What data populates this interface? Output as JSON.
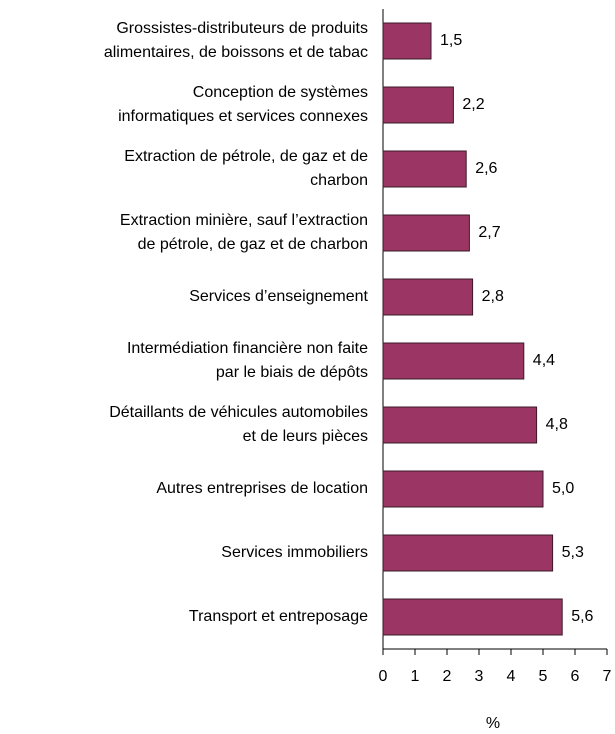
{
  "chart_data": {
    "type": "barh",
    "categories": [
      "Grossistes-distributeurs de produits\nalimentaires, de boissons et de tabac",
      "Conception de systèmes\ninformatiques et services connexes",
      "Extraction de pétrole, de gaz et de\ncharbon",
      "Extraction minière, sauf l’extraction\nde pétrole, de gaz et de charbon",
      "Services d’enseignement",
      "Intermédiation financière non faite\npar le biais de dépôts",
      "Détaillants de véhicules automobiles\net de leurs pièces",
      "Autres entreprises de location",
      "Services immobiliers",
      "Transport et entreposage"
    ],
    "values": [
      1.5,
      2.2,
      2.6,
      2.7,
      2.8,
      4.4,
      4.8,
      5.0,
      5.3,
      5.6
    ],
    "value_labels": [
      "1,5",
      "2,2",
      "2,6",
      "2,7",
      "2,8",
      "4,4",
      "4,8",
      "5,0",
      "5,3",
      "5,6"
    ],
    "color": "#9b3563",
    "xlabel": "%",
    "xlim": [
      0,
      7
    ],
    "xticks": [
      0,
      1,
      2,
      3,
      4,
      5,
      6,
      7
    ]
  }
}
